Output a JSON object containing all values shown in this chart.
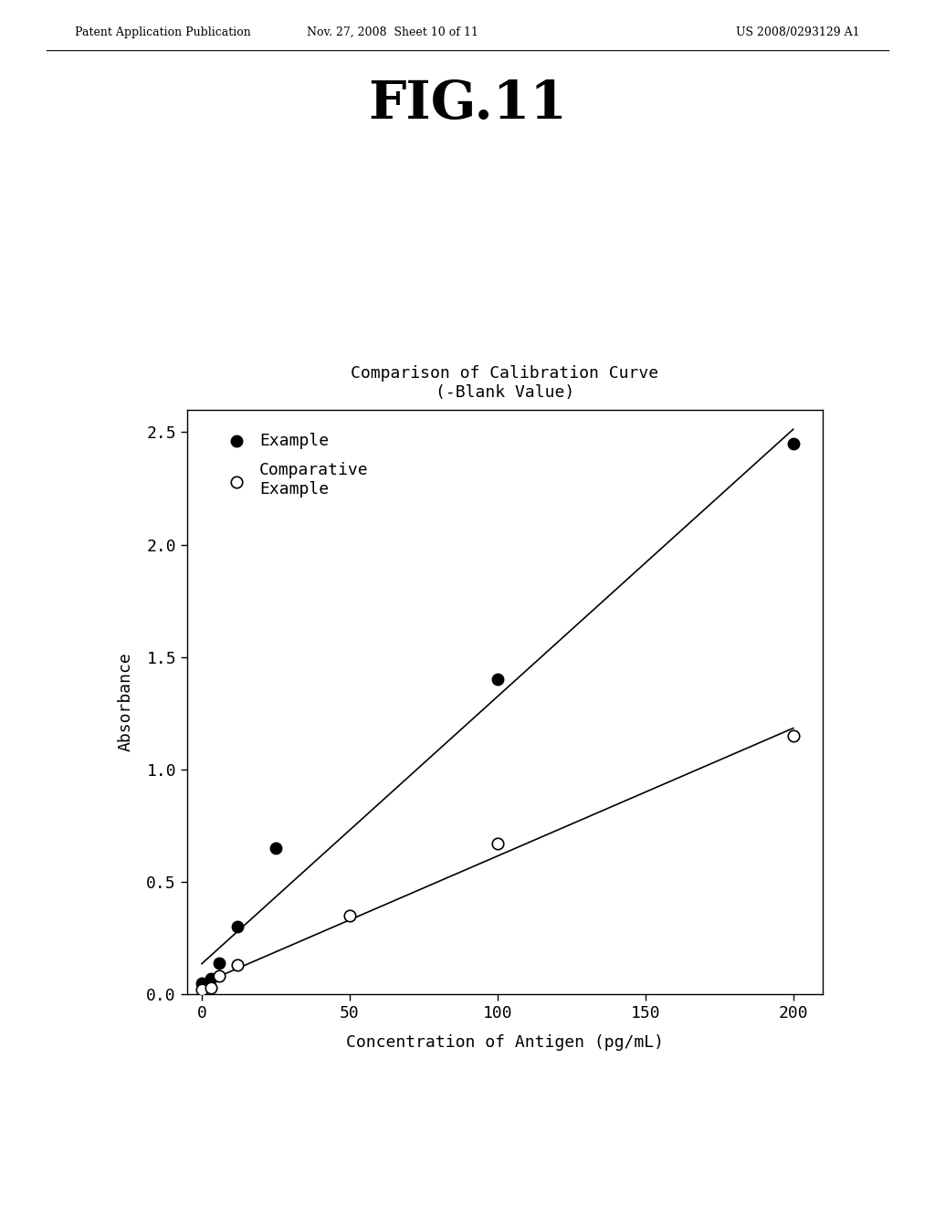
{
  "title_line1": "Comparison of Calibration Curve",
  "title_line2": "(-Blank Value)",
  "xlabel": "Concentration of Antigen (pg/mL)",
  "ylabel": "Absorbance",
  "header_left": "Patent Application Publication",
  "header_center": "Nov. 27, 2008  Sheet 10 of 11",
  "header_right": "US 2008/0293129 A1",
  "fig_label": "FIG.11",
  "example_x": [
    0,
    3,
    6,
    12,
    25,
    100,
    200
  ],
  "example_y": [
    0.05,
    0.07,
    0.14,
    0.3,
    0.65,
    1.4,
    2.45
  ],
  "comp_x": [
    0,
    3,
    6,
    12,
    50,
    100,
    200
  ],
  "comp_y": [
    0.02,
    0.03,
    0.08,
    0.13,
    0.35,
    0.67,
    1.15
  ],
  "xlim": [
    -5,
    210
  ],
  "ylim": [
    0.0,
    2.6
  ],
  "yticks": [
    0.0,
    0.5,
    1.0,
    1.5,
    2.0,
    2.5
  ],
  "xticks": [
    0,
    50,
    100,
    150,
    200
  ],
  "background_color": "#ffffff",
  "line_color": "#000000",
  "marker_filled_color": "#000000",
  "marker_open_color": "#ffffff",
  "marker_size": 9,
  "legend_example": "Example",
  "legend_comp": "Comparative\nExample"
}
